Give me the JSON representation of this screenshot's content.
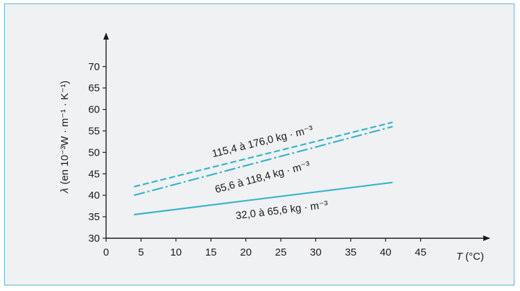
{
  "chart_data": {
    "type": "line",
    "xlabel": "T",
    "xunit": "(°C)",
    "ylabel_prefix": "λ",
    "ylabel": "(en 10⁻³W · m⁻¹ · K⁻¹)",
    "xlim": [
      0,
      55
    ],
    "ylim": [
      30,
      75
    ],
    "x_ticks": [
      0,
      5,
      10,
      15,
      20,
      25,
      30,
      35,
      40,
      45
    ],
    "y_ticks": [
      30,
      35,
      40,
      45,
      50,
      55,
      60,
      65,
      70
    ],
    "grid": false,
    "series": [
      {
        "name": "115,4 à 176,0 kg · m⁻³",
        "style": "dashed",
        "x": [
          4,
          41
        ],
        "y": [
          42,
          57
        ]
      },
      {
        "name": "65,6 à 118,4 kg · m⁻³",
        "style": "dash-dot",
        "x": [
          4,
          41
        ],
        "y": [
          40,
          56
        ]
      },
      {
        "name": "32,0 à 65,6 kg · m⁻³",
        "style": "solid",
        "x": [
          4,
          41
        ],
        "y": [
          35.5,
          43
        ]
      }
    ],
    "line_color": "#33b5cc"
  }
}
